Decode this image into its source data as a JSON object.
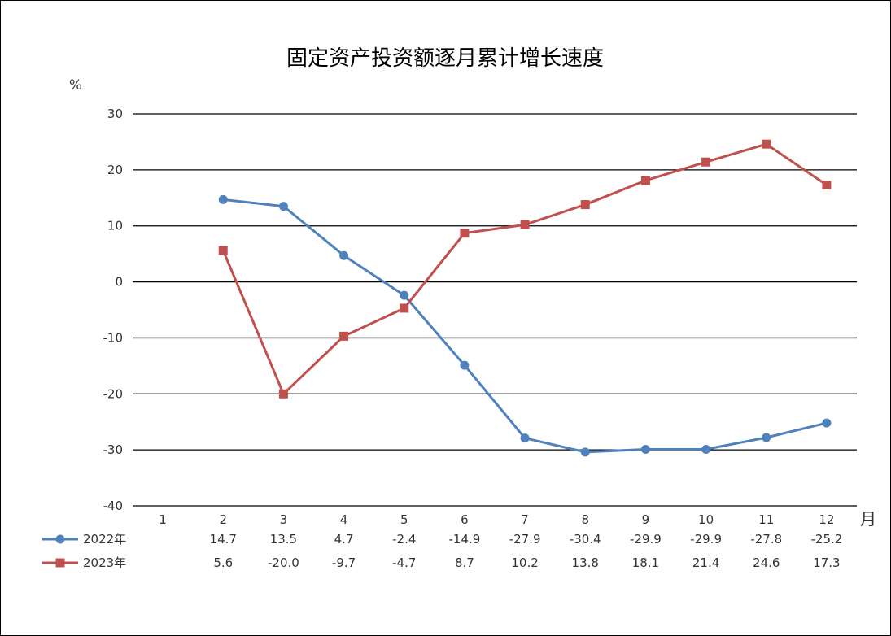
{
  "chart_data": {
    "type": "line",
    "title": "固定资产投资额逐月累计增长速度",
    "ylabel": "%",
    "xlabel": "月",
    "ylim": [
      -40,
      30
    ],
    "yticks": [
      30,
      20,
      10,
      0,
      -10,
      -20,
      -30,
      -40
    ],
    "grid": true,
    "legend": "bottom-left (data table)",
    "categories": [
      "1",
      "2",
      "3",
      "4",
      "5",
      "6",
      "7",
      "8",
      "9",
      "10",
      "11",
      "12"
    ],
    "series": [
      {
        "name": "2022年",
        "color": "#4f81bd",
        "marker": "circle",
        "values": [
          null,
          14.7,
          13.5,
          4.7,
          -2.4,
          -14.9,
          -27.9,
          -30.4,
          -29.9,
          -29.9,
          -27.8,
          -25.2
        ],
        "labels": [
          "",
          "14.7",
          "13.5",
          "4.7",
          "-2.4",
          "-14.9",
          "-27.9",
          "-30.4",
          "-29.9",
          "-29.9",
          "-27.8",
          "-25.2"
        ]
      },
      {
        "name": "2023年",
        "color": "#c0504d",
        "marker": "square",
        "values": [
          null,
          5.6,
          -20.0,
          -9.7,
          -4.7,
          8.7,
          10.2,
          13.8,
          18.1,
          21.4,
          24.6,
          17.3
        ],
        "labels": [
          "",
          "5.6",
          "-20.0",
          "-9.7",
          "-4.7",
          "8.7",
          "10.2",
          "13.8",
          "18.1",
          "21.4",
          "24.6",
          "17.3"
        ]
      }
    ]
  }
}
